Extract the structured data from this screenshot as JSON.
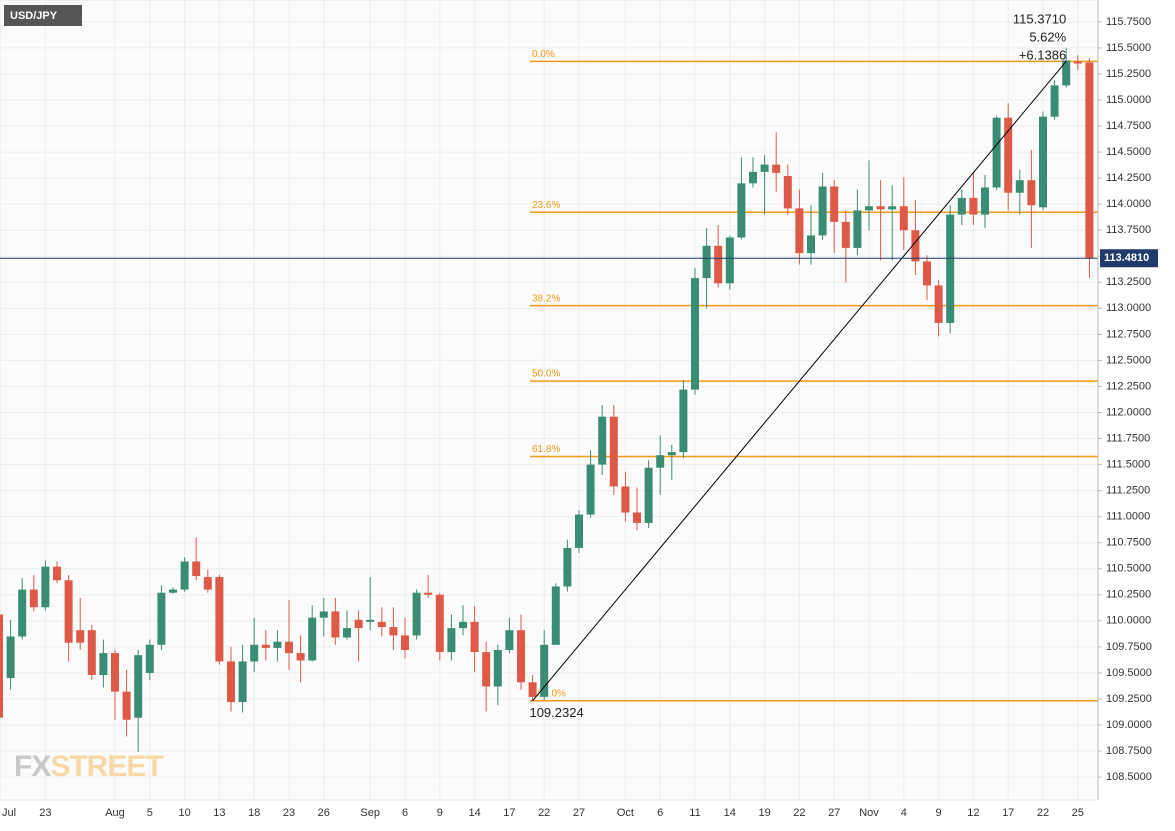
{
  "chart_data": {
    "type": "candlestick",
    "title": "USD/JPY",
    "watermark": [
      "FX",
      "STREET"
    ],
    "categories": [
      "Jul",
      null,
      null,
      null,
      "23",
      null,
      null,
      null,
      null,
      null,
      "Aug",
      null,
      null,
      "5",
      null,
      null,
      "10",
      null,
      null,
      "13",
      null,
      null,
      "18",
      null,
      null,
      "23",
      null,
      null,
      "26",
      null,
      null,
      null,
      "Sep",
      null,
      null,
      "6",
      null,
      null,
      "9",
      null,
      null,
      "14",
      null,
      null,
      "17",
      null,
      null,
      "22",
      null,
      null,
      "27",
      null,
      null,
      null,
      "Oct",
      null,
      null,
      "6",
      null,
      null,
      "11",
      null,
      null,
      "14",
      null,
      null,
      "19",
      null,
      null,
      "22",
      null,
      null,
      "27",
      null,
      null,
      "Nov",
      null,
      null,
      "4",
      null,
      null,
      "9",
      null,
      null,
      "12",
      null,
      null,
      "17",
      null,
      null,
      "22",
      null,
      null,
      "25",
      null
    ],
    "open": [
      110.06,
      109.45,
      109.85,
      110.3,
      110.13,
      110.52,
      110.39,
      109.91,
      109.91,
      109.48,
      109.69,
      109.32,
      109.07,
      109.5,
      109.77,
      110.27,
      110.3,
      110.57,
      110.42,
      110.42,
      109.61,
      109.22,
      109.61,
      109.77,
      109.74,
      109.8,
      109.69,
      109.62,
      110.03,
      110.09,
      109.84,
      110.01,
      109.99,
      109.99,
      109.94,
      109.86,
      109.86,
      110.27,
      110.25,
      109.7,
      109.93,
      109.99,
      109.7,
      109.37,
      109.72,
      109.91,
      109.41,
      109.27,
      109.77,
      110.33,
      110.7,
      111.02,
      111.5,
      111.96,
      111.29,
      111.04,
      110.94,
      111.47,
      111.59,
      111.62,
      112.22,
      113.29,
      113.6,
      113.24,
      113.68,
      114.2,
      114.31,
      114.38,
      114.27,
      113.96,
      113.53,
      113.7,
      114.17,
      113.83,
      113.58,
      113.94,
      113.98,
      113.95,
      113.98,
      113.75,
      113.45,
      113.22,
      112.86,
      113.9,
      114.06,
      113.9,
      114.16,
      114.83,
      114.11,
      114.23,
      113.97,
      114.84,
      115.14,
      115.37,
      115.36
    ],
    "high": [
      110.2,
      110.01,
      110.41,
      110.44,
      110.58,
      110.57,
      110.44,
      110.22,
      109.96,
      109.82,
      109.72,
      109.53,
      109.72,
      109.82,
      110.34,
      110.32,
      110.61,
      110.8,
      110.49,
      110.44,
      109.75,
      109.77,
      110.03,
      109.91,
      109.91,
      110.2,
      109.86,
      110.15,
      110.22,
      110.22,
      110.1,
      110.1,
      110.42,
      110.13,
      110.13,
      110.03,
      110.3,
      110.44,
      110.27,
      110.06,
      110.15,
      110.14,
      109.8,
      109.77,
      110.03,
      110.06,
      109.48,
      109.91,
      110.36,
      110.78,
      111.06,
      111.64,
      112.07,
      112.07,
      111.43,
      111.28,
      111.54,
      111.78,
      111.69,
      112.31,
      113.39,
      113.77,
      113.8,
      113.7,
      114.45,
      114.45,
      114.47,
      114.69,
      114.38,
      114.14,
      113.99,
      114.3,
      114.23,
      113.94,
      114.14,
      114.42,
      114.23,
      114.18,
      114.26,
      114.04,
      113.51,
      113.27,
      113.99,
      114.14,
      114.3,
      114.28,
      114.85,
      114.97,
      114.33,
      114.52,
      114.89,
      115.19,
      115.5,
      115.43,
      115.4
    ],
    "low": [
      109.05,
      109.34,
      109.82,
      110.09,
      110.1,
      110.36,
      109.61,
      109.72,
      109.43,
      109.36,
      109.05,
      108.89,
      108.74,
      109.43,
      109.72,
      110.26,
      110.28,
      110.39,
      110.27,
      109.58,
      109.13,
      109.12,
      109.51,
      109.62,
      109.61,
      109.53,
      109.41,
      109.61,
      109.85,
      109.77,
      109.82,
      109.61,
      109.91,
      109.85,
      109.72,
      109.64,
      109.82,
      110.22,
      109.62,
      109.62,
      109.86,
      109.51,
      109.13,
      109.19,
      109.69,
      109.34,
      109.23,
      109.24,
      109.77,
      110.28,
      110.65,
      110.99,
      111.4,
      111.21,
      110.95,
      110.87,
      110.89,
      111.21,
      111.35,
      111.56,
      112.17,
      113.0,
      113.2,
      113.18,
      113.66,
      114.16,
      113.9,
      114.12,
      113.9,
      113.42,
      113.42,
      113.66,
      113.53,
      113.25,
      113.51,
      113.75,
      113.46,
      113.46,
      113.56,
      113.32,
      113.08,
      112.73,
      112.76,
      113.8,
      113.8,
      113.77,
      114.14,
      113.94,
      113.9,
      113.58,
      113.94,
      114.81,
      115.12,
      115.29,
      113.29
    ],
    "close": [
      109.07,
      109.85,
      110.3,
      110.13,
      110.52,
      110.39,
      109.79,
      109.79,
      109.48,
      109.69,
      109.32,
      109.05,
      109.67,
      109.77,
      110.27,
      110.3,
      110.57,
      110.43,
      110.3,
      109.61,
      109.22,
      109.61,
      109.77,
      109.74,
      109.8,
      109.69,
      109.62,
      110.03,
      110.09,
      109.84,
      109.93,
      109.93,
      110.01,
      109.94,
      109.86,
      109.72,
      110.27,
      110.25,
      109.7,
      109.93,
      109.99,
      109.7,
      109.37,
      109.72,
      109.91,
      109.41,
      109.27,
      109.77,
      110.33,
      110.7,
      111.02,
      111.5,
      111.96,
      111.29,
      111.04,
      110.94,
      111.47,
      111.59,
      111.62,
      112.22,
      113.29,
      113.6,
      113.24,
      113.68,
      114.2,
      114.31,
      114.38,
      114.3,
      113.96,
      113.53,
      113.7,
      114.17,
      113.83,
      113.58,
      113.94,
      113.98,
      113.95,
      113.98,
      113.75,
      113.45,
      113.22,
      112.86,
      113.9,
      114.06,
      113.9,
      114.16,
      114.83,
      114.11,
      114.23,
      113.99,
      114.84,
      115.14,
      115.38,
      115.35,
      113.48
    ],
    "up_color": "#3b8c75",
    "down_color": "#dd5a48",
    "ylim": [
      108.28,
      115.96
    ],
    "yticks": [
      {
        "value": 115.75,
        "label": "115.7500"
      },
      {
        "value": 115.5,
        "label": "115.5000"
      },
      {
        "value": 115.25,
        "label": "115.2500"
      },
      {
        "value": 115,
        "label": "115.0000"
      },
      {
        "value": 114.75,
        "label": "114.7500"
      },
      {
        "value": 114.5,
        "label": "114.5000"
      },
      {
        "value": 114.25,
        "label": "114.2500"
      },
      {
        "value": 114,
        "label": "114.0000"
      },
      {
        "value": 113.75,
        "label": "113.7500"
      },
      {
        "value": 113.5,
        "label": "113.5000"
      },
      {
        "value": 113.25,
        "label": "113.2500"
      },
      {
        "value": 113,
        "label": "113.0000"
      },
      {
        "value": 112.75,
        "label": "112.7500"
      },
      {
        "value": 112.5,
        "label": "112.5000"
      },
      {
        "value": 112.25,
        "label": "112.2500"
      },
      {
        "value": 112,
        "label": "112.0000"
      },
      {
        "value": 111.75,
        "label": "111.7500"
      },
      {
        "value": 111.5,
        "label": "111.5000"
      },
      {
        "value": 111.25,
        "label": "111.2500"
      },
      {
        "value": 111,
        "label": "111.0000"
      },
      {
        "value": 110.75,
        "label": "110.7500"
      },
      {
        "value": 110.5,
        "label": "110.5000"
      },
      {
        "value": 110.25,
        "label": "110.2500"
      },
      {
        "value": 110,
        "label": "110.0000"
      },
      {
        "value": 109.75,
        "label": "109.7500"
      },
      {
        "value": 109.5,
        "label": "109.5000"
      },
      {
        "value": 109.25,
        "label": "109.2500"
      },
      {
        "value": 109,
        "label": "109.0000"
      },
      {
        "value": 108.75,
        "label": "108.7500"
      },
      {
        "value": 108.5,
        "label": "108.5000"
      }
    ],
    "grid": true,
    "current_price": {
      "value": 113.481,
      "label": "113.4810",
      "color": "#1f3a6b"
    },
    "fibonacci": {
      "color": "#f29a1a",
      "levels": [
        {
          "value": 115.371,
          "label": "0.0%"
        },
        {
          "value": 113.922,
          "label": "23.6%"
        },
        {
          "value": 113.026,
          "label": "38.2%"
        },
        {
          "value": 112.3017,
          "label": "50.0%"
        },
        {
          "value": 111.5774,
          "label": "61.8%"
        },
        {
          "value": 109.2324,
          "label": "100.0%"
        }
      ]
    },
    "trendline": {
      "start_index": 46,
      "end_index": 92,
      "start": {
        "value": 109.2324,
        "label": "109.2324"
      },
      "end": {
        "value": 115.371,
        "label": "115.3710"
      },
      "change_pct": "5.62%",
      "change": "+6.1386"
    }
  }
}
